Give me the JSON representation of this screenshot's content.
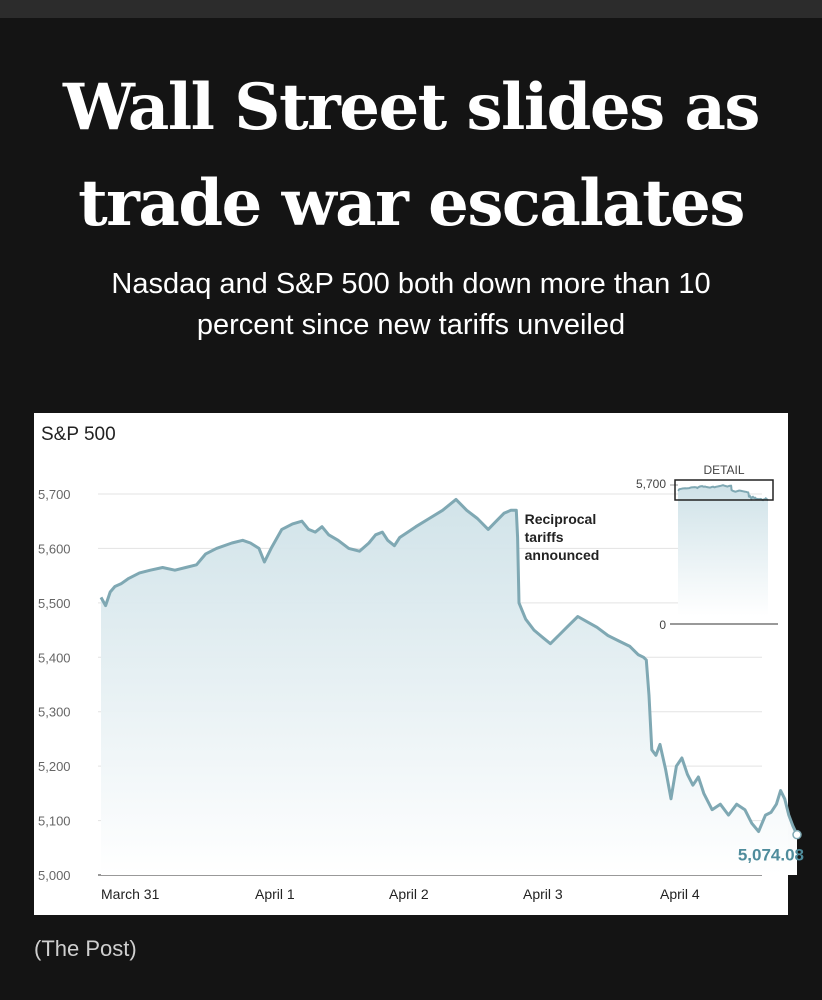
{
  "headline": "Wall Street slides as trade war escalates",
  "subhead": "Nasdaq and S&P 500 both down more than 10 percent since new tariffs unveiled",
  "credit": "(The Post)",
  "colors": {
    "line": "#7fa8b3",
    "area_top": "#cfe2e8",
    "last_label": "#4f8c9c"
  },
  "chart_data": {
    "type": "line",
    "title": "S&P 500",
    "xlabel": "",
    "ylabel": "",
    "ylim": [
      5000,
      5700
    ],
    "grid": true,
    "y_ticks": [
      5000,
      5100,
      5200,
      5300,
      5400,
      5500,
      5600,
      5700
    ],
    "y_tick_labels": [
      "5,000",
      "5,100",
      "5,200",
      "5,300",
      "5,400",
      "5,500",
      "5,600",
      "5,700"
    ],
    "x_tick_labels": [
      "March 31",
      "April 1",
      "April 2",
      "April 3",
      "April 4"
    ],
    "x_range": [
      0,
      5
    ],
    "series": [
      {
        "name": "",
        "points": [
          [
            0.0,
            5510
          ],
          [
            0.03,
            5495
          ],
          [
            0.06,
            5520
          ],
          [
            0.09,
            5530
          ],
          [
            0.13,
            5535
          ],
          [
            0.18,
            5545
          ],
          [
            0.25,
            5555
          ],
          [
            0.32,
            5560
          ],
          [
            0.4,
            5565
          ],
          [
            0.48,
            5560
          ],
          [
            0.55,
            5565
          ],
          [
            0.62,
            5570
          ],
          [
            0.68,
            5590
          ],
          [
            0.75,
            5600
          ],
          [
            0.85,
            5610
          ],
          [
            0.92,
            5615
          ],
          [
            0.97,
            5610
          ],
          [
            1.03,
            5600
          ],
          [
            1.07,
            5575
          ],
          [
            1.12,
            5600
          ],
          [
            1.2,
            5635
          ],
          [
            1.28,
            5645
          ],
          [
            1.35,
            5650
          ],
          [
            1.4,
            5635
          ],
          [
            1.45,
            5630
          ],
          [
            1.5,
            5640
          ],
          [
            1.55,
            5625
          ],
          [
            1.62,
            5615
          ],
          [
            1.7,
            5600
          ],
          [
            1.78,
            5595
          ],
          [
            1.85,
            5610
          ],
          [
            1.9,
            5625
          ],
          [
            1.95,
            5630
          ],
          [
            1.99,
            5615
          ],
          [
            2.04,
            5605
          ],
          [
            2.08,
            5620
          ],
          [
            2.14,
            5630
          ],
          [
            2.2,
            5640
          ],
          [
            2.3,
            5655
          ],
          [
            2.4,
            5670
          ],
          [
            2.5,
            5690
          ],
          [
            2.58,
            5670
          ],
          [
            2.66,
            5655
          ],
          [
            2.74,
            5635
          ],
          [
            2.8,
            5650
          ],
          [
            2.86,
            5665
          ],
          [
            2.91,
            5670
          ],
          [
            2.95,
            5670
          ],
          [
            2.96,
            5620
          ],
          [
            2.97,
            5500
          ],
          [
            3.02,
            5470
          ],
          [
            3.08,
            5450
          ],
          [
            3.15,
            5435
          ],
          [
            3.2,
            5425
          ],
          [
            3.26,
            5440
          ],
          [
            3.32,
            5455
          ],
          [
            3.4,
            5475
          ],
          [
            3.47,
            5465
          ],
          [
            3.54,
            5455
          ],
          [
            3.62,
            5440
          ],
          [
            3.7,
            5430
          ],
          [
            3.78,
            5420
          ],
          [
            3.84,
            5405
          ],
          [
            3.88,
            5400
          ],
          [
            3.9,
            5395
          ],
          [
            3.92,
            5330
          ],
          [
            3.94,
            5230
          ],
          [
            3.97,
            5220
          ],
          [
            4.0,
            5240
          ],
          [
            4.04,
            5195
          ],
          [
            4.08,
            5140
          ],
          [
            4.12,
            5200
          ],
          [
            4.16,
            5215
          ],
          [
            4.2,
            5185
          ],
          [
            4.24,
            5165
          ],
          [
            4.28,
            5180
          ],
          [
            4.32,
            5150
          ],
          [
            4.38,
            5120
          ],
          [
            4.44,
            5130
          ],
          [
            4.5,
            5110
          ],
          [
            4.56,
            5130
          ],
          [
            4.62,
            5120
          ],
          [
            4.67,
            5095
          ],
          [
            4.72,
            5080
          ],
          [
            4.77,
            5110
          ],
          [
            4.81,
            5115
          ],
          [
            4.85,
            5130
          ],
          [
            4.88,
            5155
          ],
          [
            4.91,
            5140
          ],
          [
            4.94,
            5110
          ],
          [
            4.97,
            5090
          ],
          [
            5.0,
            5074.08
          ]
        ]
      }
    ],
    "annotations": [
      {
        "text_lines": [
          "Reciprocal",
          "tariffs",
          "announced"
        ],
        "x": 2.96
      }
    ],
    "last_value_label": "5,074.08",
    "inset": {
      "title": "DETAIL",
      "ylim": [
        0,
        5700
      ],
      "tick_labels": [
        "5,700",
        "0"
      ]
    }
  }
}
